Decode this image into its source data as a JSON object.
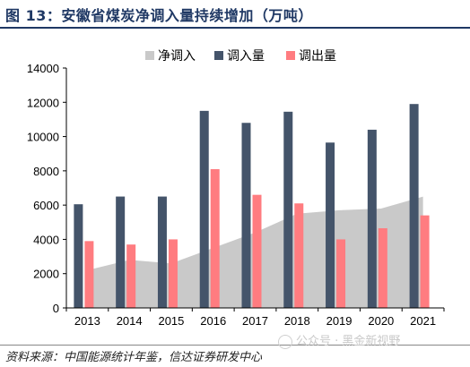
{
  "figure": {
    "title": "图 13：安徽省煤炭净调入量持续增加（万吨）",
    "source": "资料来源：中国能源统计年鉴，信达证券研发中心",
    "watermark": "公众号 · 黑金新视野"
  },
  "chart_data": {
    "type": "bar",
    "categories": [
      "2013",
      "2014",
      "2015",
      "2016",
      "2017",
      "2018",
      "2019",
      "2020",
      "2021"
    ],
    "series": [
      {
        "name": "净调入",
        "kind": "area",
        "color": "#c9c9c9",
        "values": [
          2200,
          2800,
          2600,
          3500,
          4400,
          5500,
          5700,
          5800,
          6500
        ]
      },
      {
        "name": "调入量",
        "kind": "bar",
        "color": "#44546a",
        "values": [
          6050,
          6500,
          6500,
          11500,
          10800,
          11450,
          9650,
          10400,
          11900
        ]
      },
      {
        "name": "调出量",
        "kind": "bar",
        "color": "#ff7c80",
        "values": [
          3900,
          3700,
          4000,
          8100,
          6600,
          6100,
          4000,
          4650,
          5400
        ]
      }
    ],
    "yticks": [
      "0",
      "2000",
      "4000",
      "6000",
      "8000",
      "10000",
      "12000",
      "14000"
    ],
    "ylim": [
      0,
      14000
    ],
    "grid": false,
    "legend_position": "top"
  }
}
